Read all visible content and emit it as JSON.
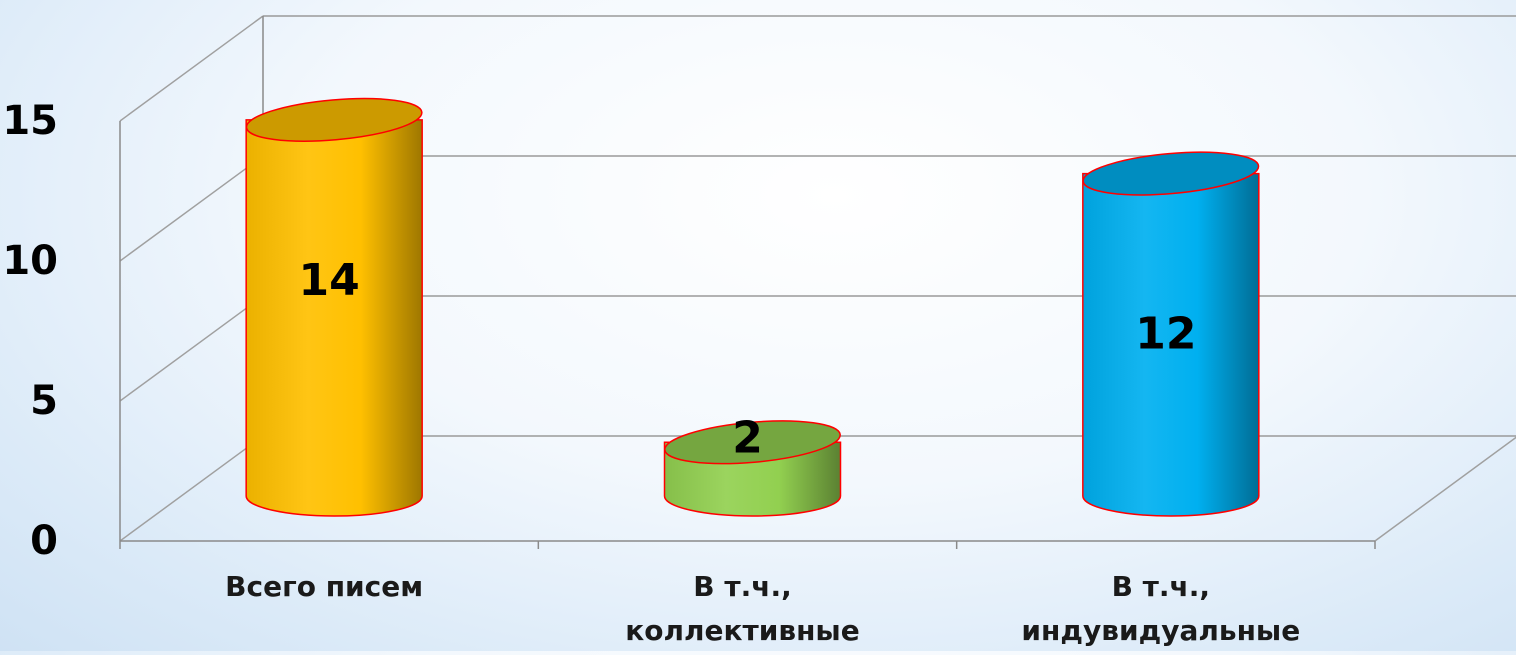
{
  "chart_data": {
    "type": "bar",
    "style": "3d-cylinder",
    "categories": [
      "Всего писем",
      "В т.ч., коллективные",
      "В т.ч., индувидуальные"
    ],
    "category_lines": [
      [
        "Всего писем"
      ],
      [
        "В т.ч.,",
        "коллективные"
      ],
      [
        "В т.ч.,",
        "индувидуальные"
      ]
    ],
    "values": [
      14,
      2,
      12
    ],
    "data_labels": [
      "14",
      "2",
      "12"
    ],
    "colors": [
      "#ffc000",
      "#92d050",
      "#00b0f0"
    ],
    "outline_color": "#ff0000",
    "ylim": [
      0,
      15
    ],
    "y_ticks": [
      0,
      5,
      10,
      15
    ],
    "y_tick_labels": [
      "0",
      "5",
      "10",
      "15"
    ],
    "grid": true,
    "legend": "none"
  }
}
